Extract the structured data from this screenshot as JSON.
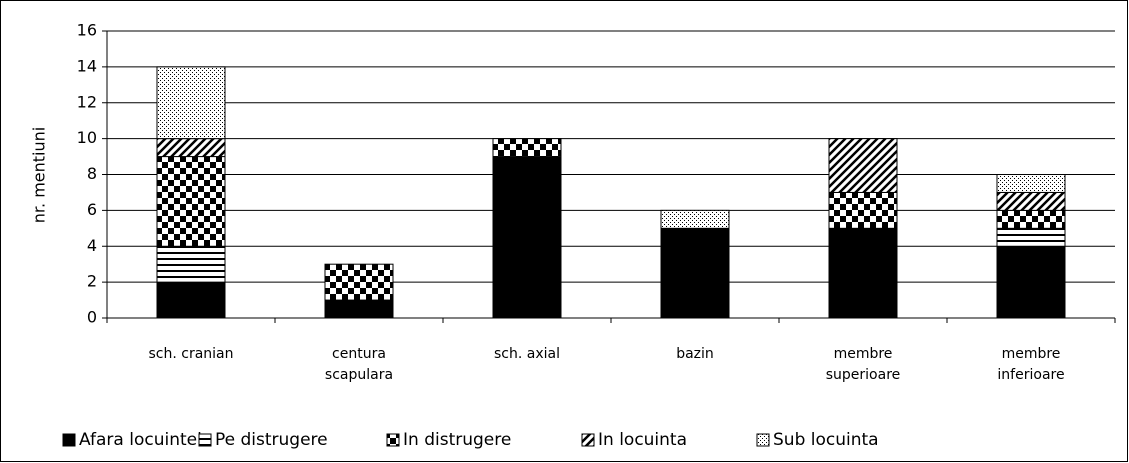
{
  "chart_data": {
    "type": "stacked_bar",
    "categories": [
      "sch. cranian",
      "centura\nscapulara",
      "sch. axial",
      "bazin",
      "membre\nsuperioare",
      "membre\ninferioare"
    ],
    "ylabel": "nr. mentiuni",
    "series": [
      {
        "name": "Afara locuintei",
        "color": "#000000",
        "pattern": "solid",
        "values": [
          2,
          1,
          9,
          5,
          5,
          4
        ]
      },
      {
        "name": "Pe distrugere",
        "color": "#000000",
        "pattern": "horizontal",
        "values": [
          2,
          0,
          0,
          0,
          0,
          1
        ]
      },
      {
        "name": "In distrugere",
        "color": "#000000",
        "pattern": "checker",
        "values": [
          5,
          2,
          1,
          0,
          2,
          1
        ]
      },
      {
        "name": "In locuinta",
        "color": "#000000",
        "pattern": "diagonal",
        "values": [
          1,
          0,
          0,
          0,
          3,
          1
        ]
      },
      {
        "name": "Sub locuinta",
        "color": "#000000",
        "pattern": "dots",
        "values": [
          4,
          0,
          0,
          1,
          0,
          1
        ]
      }
    ],
    "ylim": [
      0,
      16
    ],
    "yticks": [
      0,
      2,
      4,
      6,
      8,
      10,
      12,
      14,
      16
    ],
    "grid": true,
    "legend": "bottom"
  }
}
